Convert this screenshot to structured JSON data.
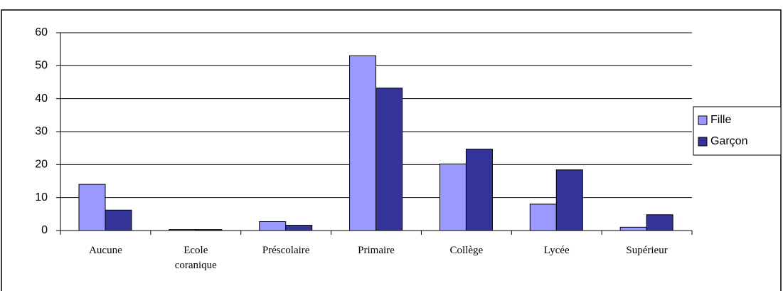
{
  "chart_data": {
    "type": "bar",
    "categories": [
      "Aucune",
      "Ecole coranique",
      "Préscolaire",
      "Primaire",
      "Collège",
      "Lycée",
      "Supérieur"
    ],
    "series": [
      {
        "name": "Fille",
        "color": "#9999ff",
        "values": [
          14,
          0.3,
          2.7,
          53,
          20.2,
          8,
          1
        ]
      },
      {
        "name": "Garçon",
        "color": "#333399",
        "values": [
          6.2,
          0.3,
          1.6,
          43.2,
          24.7,
          18.4,
          4.8
        ]
      }
    ],
    "ylim": [
      0,
      60
    ],
    "yticks": [
      0,
      10,
      20,
      30,
      40,
      50,
      60
    ],
    "grid": true,
    "legend": "right"
  }
}
